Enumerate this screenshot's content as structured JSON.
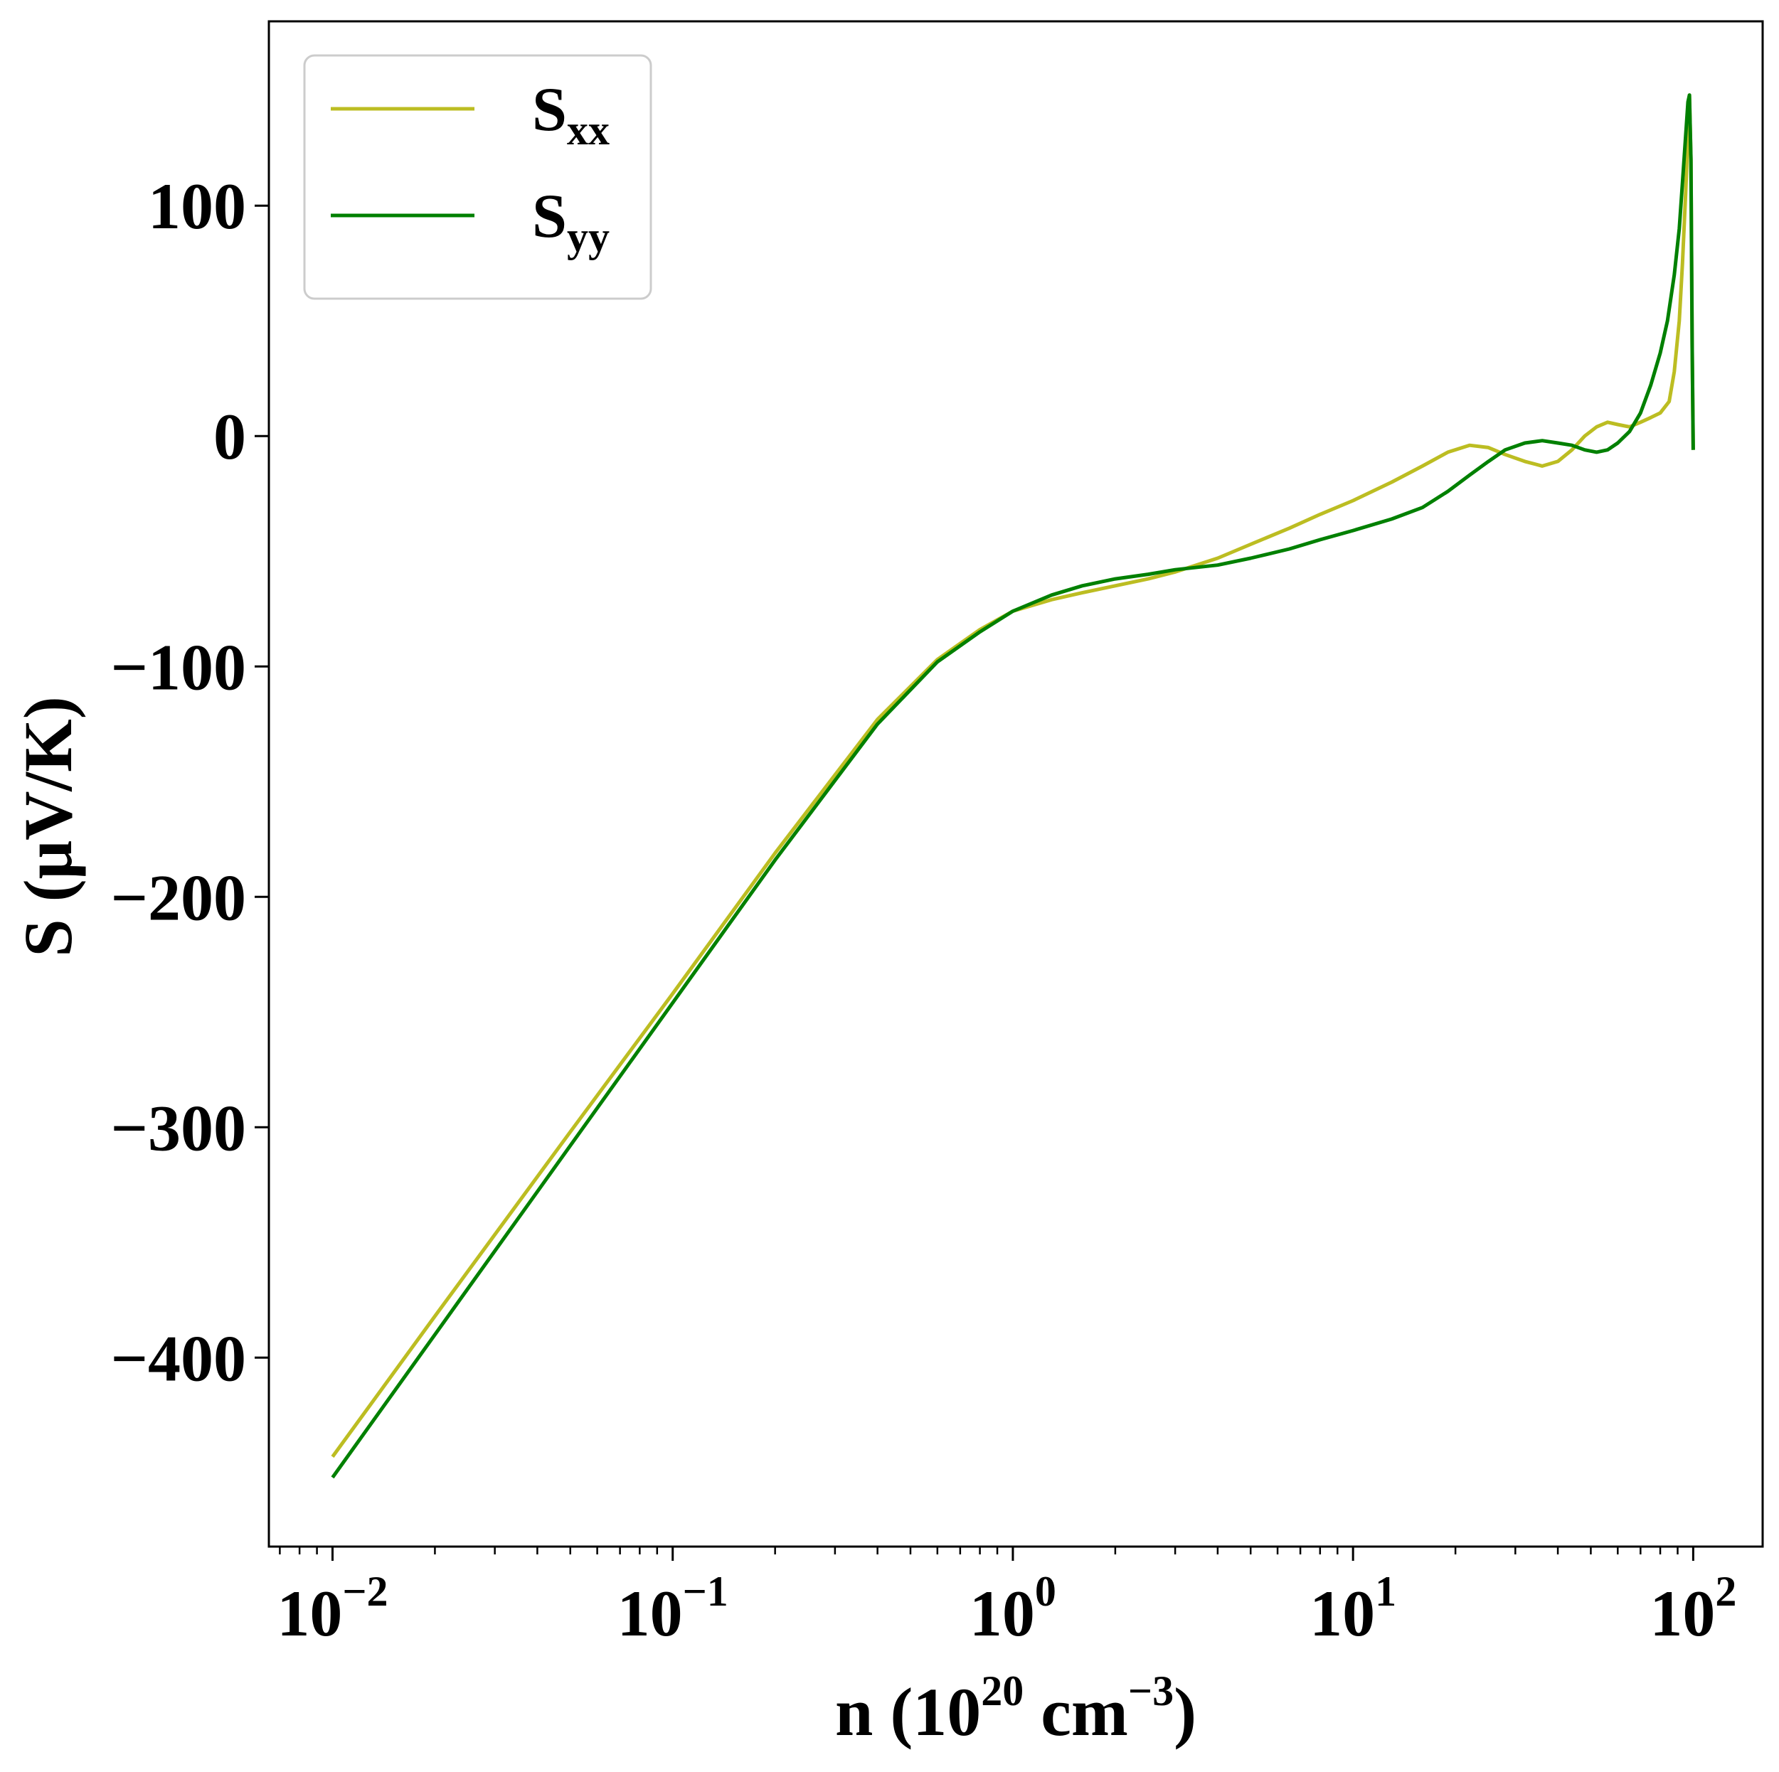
{
  "chart_data": {
    "type": "line",
    "xscale": "log",
    "xlim": [
      0.0065,
      160
    ],
    "ylim": [
      -482,
      180
    ],
    "xticks": [
      {
        "value": 0.01,
        "base": "10",
        "exp": "−2"
      },
      {
        "value": 0.1,
        "base": "10",
        "exp": "−1"
      },
      {
        "value": 1,
        "base": "10",
        "exp": "0"
      },
      {
        "value": 10,
        "base": "10",
        "exp": "1"
      },
      {
        "value": 100,
        "base": "10",
        "exp": "2"
      }
    ],
    "yticks": [
      {
        "value": 100,
        "label": "100"
      },
      {
        "value": 0,
        "label": "0"
      },
      {
        "value": -100,
        "label": "−100"
      },
      {
        "value": -200,
        "label": "−200"
      },
      {
        "value": -300,
        "label": "−300"
      },
      {
        "value": -400,
        "label": "−400"
      }
    ],
    "xlabel": {
      "pre": "n (10",
      "sup1": "20",
      "mid": " cm",
      "sup2": "−3",
      "post": ")"
    },
    "ylabel": "S (μV/K)",
    "grid": false,
    "legend": "top-left",
    "series": [
      {
        "name": "S",
        "sub": "xx",
        "color": "#bcbd22",
        "x": [
          0.01,
          0.02,
          0.05,
          0.1,
          0.2,
          0.4,
          0.6,
          0.8,
          1.0,
          1.3,
          1.6,
          2.0,
          2.5,
          3.0,
          4.0,
          5.0,
          6.5,
          8.0,
          10,
          13,
          16,
          19,
          22,
          25,
          28,
          32,
          36,
          40,
          44,
          48,
          52,
          56,
          60,
          65,
          70,
          75,
          80,
          85,
          88,
          91,
          93,
          95,
          96.5,
          97.5,
          98.5,
          99.3,
          100
        ],
        "y": [
          -443,
          -382,
          -302,
          -242,
          -181,
          -123,
          -97,
          -84,
          -76,
          -71,
          -68,
          -65,
          -62,
          -59,
          -53,
          -47,
          -40,
          -34,
          -28,
          -20,
          -13,
          -7,
          -4,
          -5,
          -8,
          -11,
          -13,
          -11,
          -6,
          0,
          4,
          6,
          5,
          4,
          6,
          8,
          10,
          15,
          28,
          50,
          75,
          105,
          130,
          148,
          120,
          40,
          -6
        ]
      },
      {
        "name": "S",
        "sub": "yy",
        "color": "#008000",
        "x": [
          0.01,
          0.02,
          0.05,
          0.1,
          0.2,
          0.4,
          0.6,
          0.8,
          1.0,
          1.3,
          1.6,
          2.0,
          2.5,
          3.0,
          4.0,
          5.0,
          6.5,
          8.0,
          10,
          13,
          16,
          19,
          22,
          25,
          28,
          32,
          36,
          40,
          44,
          48,
          52,
          56,
          60,
          65,
          70,
          75,
          80,
          84,
          88,
          91,
          93,
          95,
          96.5,
          97.5,
          98.5,
          99.3,
          100
        ],
        "y": [
          -452,
          -390,
          -308,
          -246,
          -184,
          -125,
          -98,
          -85,
          -76,
          -69,
          -65,
          -62,
          -60,
          -58,
          -56,
          -53,
          -49,
          -45,
          -41,
          -36,
          -31,
          -24,
          -17,
          -11,
          -6,
          -3,
          -2,
          -3,
          -4,
          -6,
          -7,
          -6,
          -3,
          2,
          10,
          22,
          36,
          50,
          70,
          90,
          110,
          130,
          145,
          148,
          120,
          40,
          -6
        ]
      }
    ]
  }
}
